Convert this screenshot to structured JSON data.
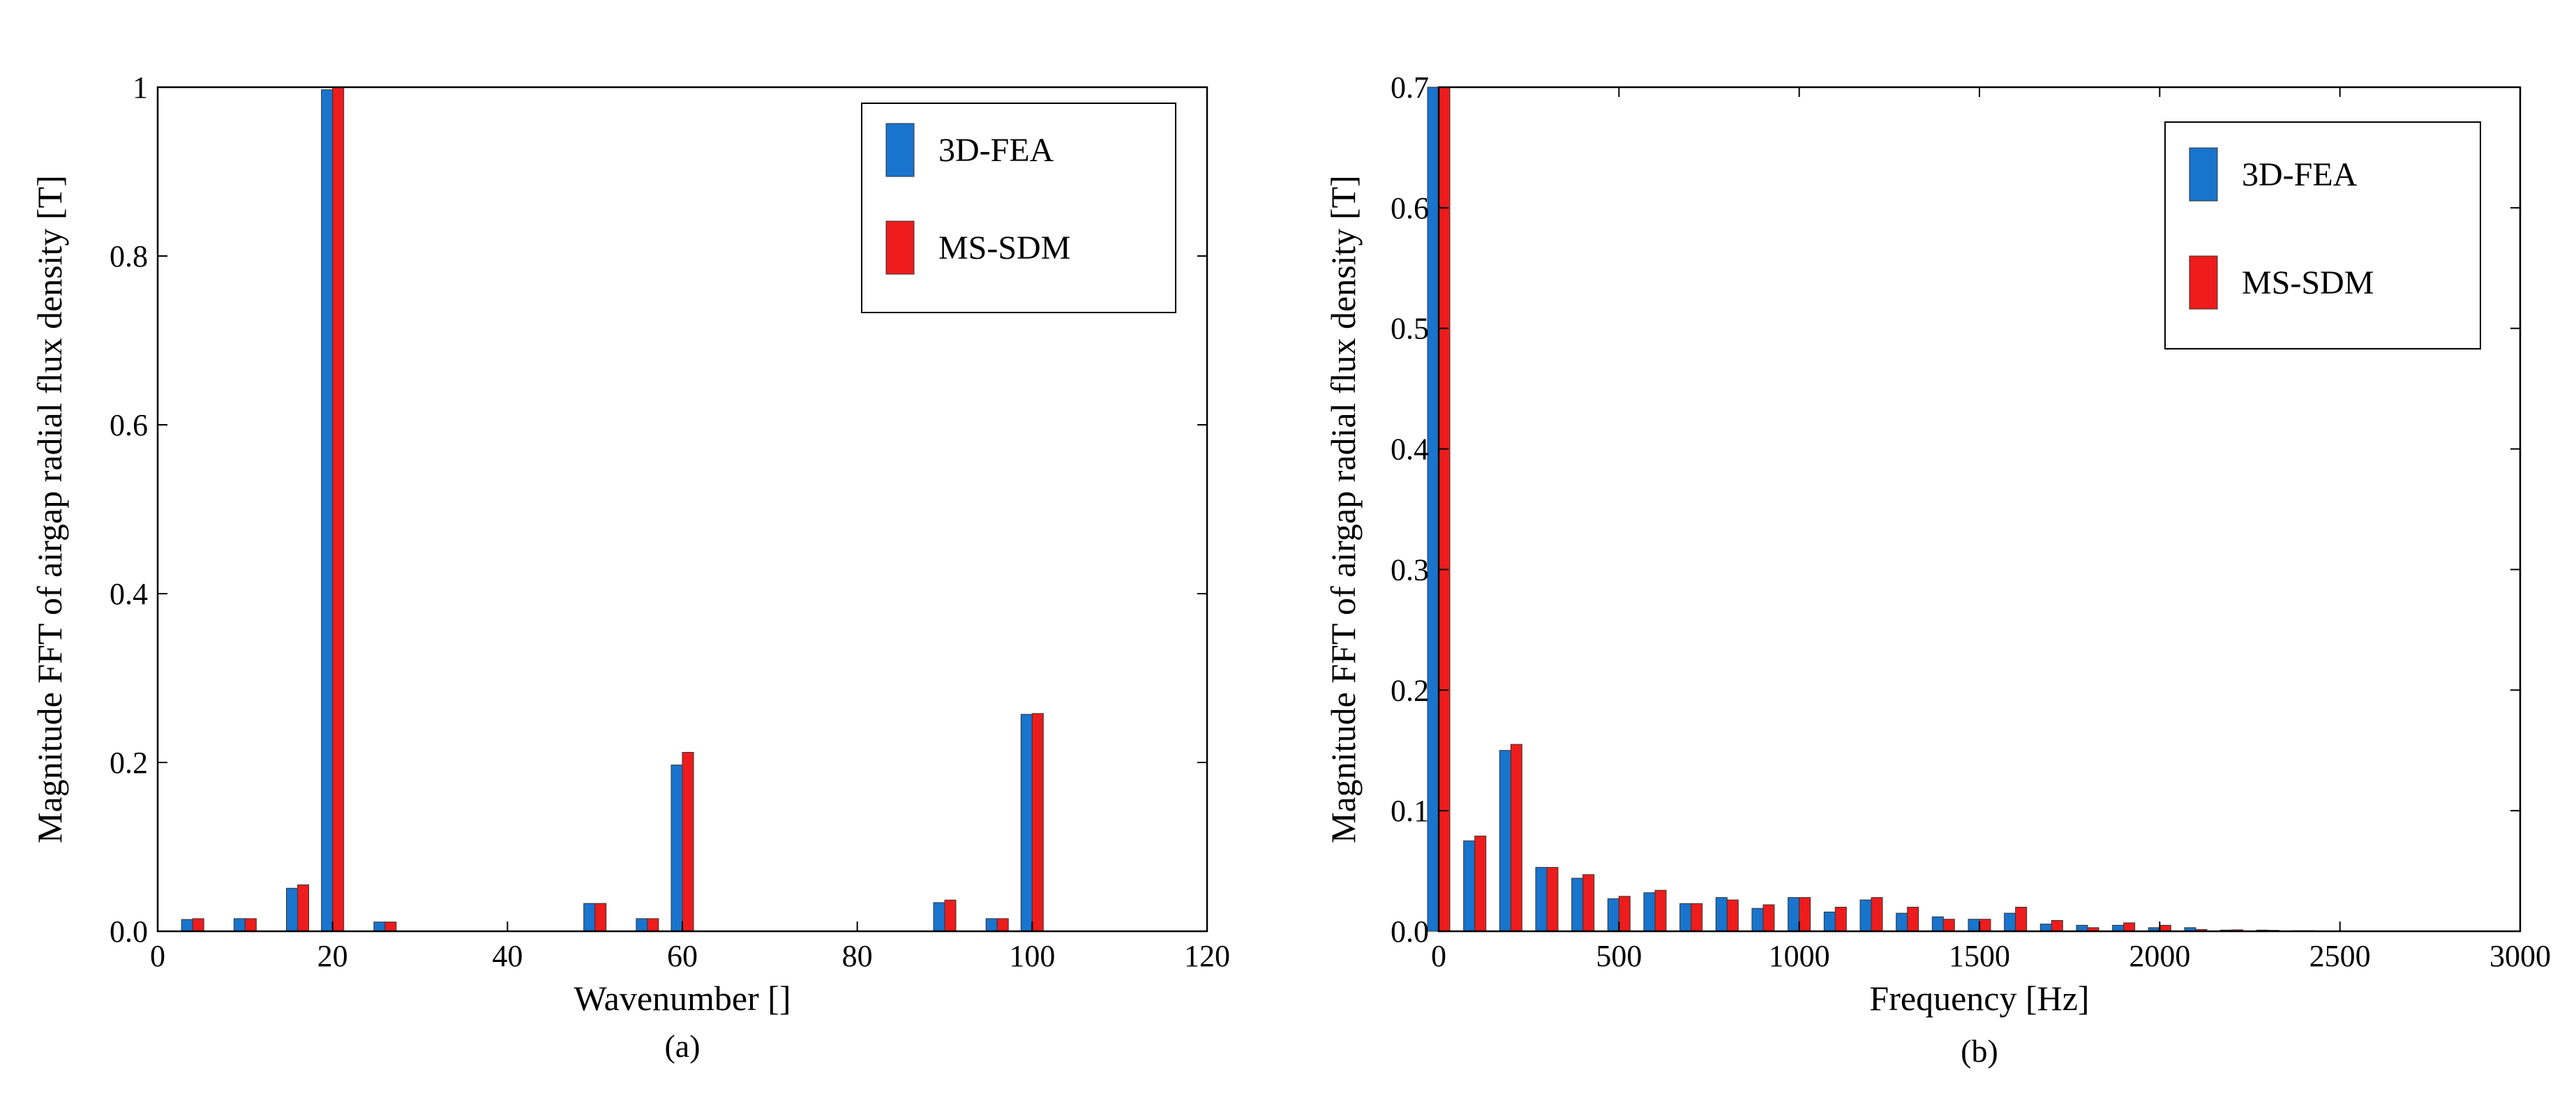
{
  "chart_data": [
    {
      "type": "bar",
      "panel": "(a)",
      "xlabel": "Wavenumber []",
      "ylabel": "Magnitude FFT of airgap radial flux density [T]",
      "xlim": [
        0,
        120
      ],
      "ylim": [
        0,
        1
      ],
      "xticks": [
        "0",
        "20",
        "40",
        "60",
        "80",
        "100",
        "120"
      ],
      "yticks": [
        "0.0",
        "0.2",
        "0.4",
        "0.6",
        "0.8",
        "1"
      ],
      "legend": "top-right",
      "x": [
        4,
        10,
        16,
        20,
        26,
        50,
        56,
        60,
        90,
        96,
        100
      ],
      "series": [
        {
          "name": "3D-FEA",
          "color": "#1874cd",
          "values": [
            0.014,
            0.015,
            0.051,
            0.997,
            0.011,
            0.033,
            0.015,
            0.197,
            0.034,
            0.015,
            0.257
          ]
        },
        {
          "name": "MS-SDM",
          "color": "#ee1c1c",
          "values": [
            0.015,
            0.015,
            0.055,
            1.0,
            0.011,
            0.033,
            0.015,
            0.212,
            0.037,
            0.015,
            0.258
          ]
        }
      ]
    },
    {
      "type": "bar",
      "panel": "(b)",
      "xlabel": "Frequency [Hz]",
      "ylabel": "Magnitude FFT of airgap radial flux density [T]",
      "xlim": [
        0,
        3000
      ],
      "ylim": [
        0,
        0.7
      ],
      "xticks": [
        "0",
        "500",
        "1000",
        "1500",
        "2000",
        "2500",
        "3000"
      ],
      "yticks": [
        "0.0",
        "0.1",
        "0.2",
        "0.3",
        "0.4",
        "0.5",
        "0.6",
        "0.7"
      ],
      "legend": "top-right",
      "x": [
        0,
        100,
        200,
        300,
        400,
        500,
        600,
        700,
        800,
        900,
        1000,
        1100,
        1200,
        1300,
        1400,
        1500,
        1600,
        1700,
        1800,
        1900,
        2000,
        2100,
        2200,
        2300,
        2400
      ],
      "series": [
        {
          "name": "3D-FEA",
          "color": "#1874cd",
          "values": [
            0.7,
            0.075,
            0.15,
            0.053,
            0.044,
            0.027,
            0.032,
            0.023,
            0.028,
            0.019,
            0.028,
            0.016,
            0.026,
            0.015,
            0.012,
            0.01,
            0.015,
            0.006,
            0.005,
            0.005,
            0.003,
            0.003,
            0.001,
            0.001,
            0.0005
          ]
        },
        {
          "name": "MS-SDM",
          "color": "#ee1c1c",
          "values": [
            0.7,
            0.079,
            0.155,
            0.053,
            0.047,
            0.029,
            0.034,
            0.023,
            0.026,
            0.022,
            0.028,
            0.02,
            0.028,
            0.02,
            0.01,
            0.01,
            0.02,
            0.009,
            0.003,
            0.007,
            0.005,
            0.0015,
            0.0012,
            0.0008,
            0.0005
          ]
        }
      ]
    }
  ]
}
